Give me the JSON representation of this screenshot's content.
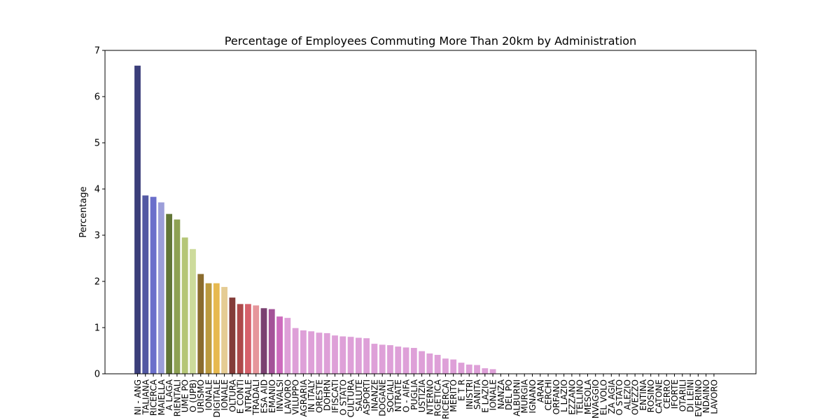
{
  "chart_data": {
    "type": "bar",
    "title": "Percentage of Employees Commuting More Than 20km by Administration",
    "xlabel": "",
    "ylabel": "Percentage",
    "ylim": [
      0,
      7
    ],
    "yticks": [
      0,
      1,
      2,
      3,
      4,
      5,
      6,
      7
    ],
    "grid": false,
    "categories": [
      "NI - ANG",
      "TALIANA",
      "RICERCA",
      "MAIELLA",
      "A LAGA",
      "RIENTALI",
      "UME PO",
      "O (UPB)",
      "URISMO",
      "IONALE",
      "DIGITALE",
      "IONALE",
      "OLTURA",
      "E CONTI",
      "NTRALE",
      "TRADALI",
      "ESA AID",
      "EMANIO",
      "INVALSI",
      "LAVORO",
      "VILUPPO",
      "AGRARIA",
      "IN ITALY",
      "ORESTE",
      "DOHRN",
      "IFISCATI",
      "O STATO",
      "CULTURA",
      "SALUTE",
      "ASPORTI",
      "INANZE",
      "DOGANE",
      "SOCIALI",
      "NTRATE",
      "O - AIFA",
      "PUGLIA",
      "USTIZIA",
      "NTERNO",
      "RGETICA",
      "RICERCA)",
      "MERITO",
      "E T R",
      "INISTRI",
      "SANITA",
      "E LAZIO",
      "IONALE",
      "NANZA",
      "DEL PO",
      "ALBURNI",
      "MURGIA",
      "IGNANO",
      "ARAN",
      "CERCHI",
      "ORFANO",
      "L LAZIO",
      "EZZANO",
      "TELLINO",
      "MESOLA",
      "NVAGGIO",
      "EL VOLO",
      "ZA AGIA",
      "O STATO",
      "ALEZIO",
      "OVEZZO",
      "ENTINA",
      "ROSINO",
      "CATONE",
      "CERRO",
      "IFORTE",
      "OTARILI",
      "DI LEINI",
      "EVERINO",
      "NDAINO",
      "LAVORO"
    ],
    "values": [
      6.67,
      3.86,
      3.83,
      3.71,
      3.46,
      3.34,
      2.95,
      2.7,
      2.16,
      1.96,
      1.96,
      1.88,
      1.65,
      1.51,
      1.51,
      1.48,
      1.42,
      1.4,
      1.24,
      1.21,
      0.99,
      0.94,
      0.92,
      0.89,
      0.88,
      0.83,
      0.81,
      0.8,
      0.78,
      0.77,
      0.65,
      0.63,
      0.62,
      0.59,
      0.57,
      0.56,
      0.49,
      0.44,
      0.41,
      0.33,
      0.31,
      0.24,
      0.2,
      0.19,
      0.12,
      0.1,
      0,
      0,
      0,
      0,
      0,
      0,
      0,
      0,
      0,
      0,
      0,
      0,
      0,
      0,
      0,
      0,
      0,
      0,
      0,
      0,
      0,
      0,
      0,
      0,
      0,
      0,
      0,
      0
    ],
    "colors": [
      "#3b3e7a",
      "#5359a3",
      "#6b6fcb",
      "#9c9ed9",
      "#627637",
      "#8ea153",
      "#b5c677",
      "#cddb9b",
      "#8b6c2e",
      "#bc9a3e",
      "#e7b94f",
      "#e5cc94",
      "#843c39",
      "#ad494a",
      "#d6616b",
      "#e6969b",
      "#7a4171",
      "#a45298",
      "#cd6bbd",
      "#dea0d8",
      "#dea0d8",
      "#dea0d8",
      "#dea0d8",
      "#dea0d8",
      "#dea0d8",
      "#dea0d8",
      "#dea0d8",
      "#dea0d8",
      "#dea0d8",
      "#dea0d8",
      "#dea0d8",
      "#dea0d8",
      "#dea0d8",
      "#dea0d8",
      "#dea0d8",
      "#dea0d8",
      "#dea0d8",
      "#dea0d8",
      "#dea0d8",
      "#dea0d8",
      "#dea0d8",
      "#dea0d8",
      "#dea0d8",
      "#dea0d8",
      "#dea0d8",
      "#dea0d8",
      "#dea0d8",
      "#dea0d8",
      "#dea0d8",
      "#dea0d8",
      "#dea0d8",
      "#dea0d8",
      "#dea0d8",
      "#dea0d8",
      "#dea0d8",
      "#dea0d8",
      "#dea0d8",
      "#dea0d8",
      "#dea0d8",
      "#dea0d8",
      "#dea0d8",
      "#dea0d8",
      "#dea0d8",
      "#dea0d8",
      "#dea0d8",
      "#dea0d8",
      "#dea0d8",
      "#dea0d8",
      "#dea0d8",
      "#dea0d8",
      "#dea0d8",
      "#dea0d8",
      "#dea0d8",
      "#dea0d8"
    ]
  }
}
